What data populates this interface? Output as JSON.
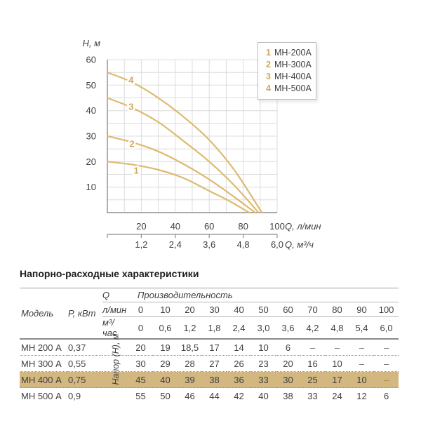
{
  "chart": {
    "y_axis_label": "Н, м",
    "x_axis_label_lmin": "Q, л/мин",
    "x_axis_label_m3h": "Q, м³/ч",
    "y_ticks": [
      10,
      20,
      30,
      40,
      50,
      60
    ],
    "x_ticks_lmin": [
      20,
      40,
      60,
      80,
      100
    ],
    "x_ticks_m3h": [
      "1,2",
      "2,4",
      "3,6",
      "4,8",
      "6,0"
    ]
  },
  "chart_data": {
    "type": "line",
    "title": "",
    "xlabel": "Q, л/мин",
    "x2label": "Q, м³/ч",
    "ylabel": "Н, м",
    "xlim": [
      0,
      100
    ],
    "ylim": [
      0,
      60
    ],
    "grid": true,
    "grid_step_x": 10,
    "grid_step_y": 5,
    "legend_position": "top-right",
    "grid_color": "#dcdcdc",
    "axis_color": "#8e8e8e",
    "curve_color": "#ddba6e",
    "number_color": "#d3a855",
    "series": [
      {
        "index": "1",
        "name": "МН-200А",
        "label_at": [
          17,
          16.5
        ],
        "points": [
          [
            0,
            20
          ],
          [
            15,
            18.8
          ],
          [
            30,
            16.8
          ],
          [
            45,
            13.5
          ],
          [
            60,
            8.5
          ],
          [
            72,
            4.5
          ],
          [
            83.5,
            0
          ]
        ]
      },
      {
        "index": "2",
        "name": "МН-300А",
        "label_at": [
          14.5,
          27
        ],
        "points": [
          [
            0,
            30
          ],
          [
            15,
            27.5
          ],
          [
            30,
            24
          ],
          [
            45,
            19
          ],
          [
            60,
            13
          ],
          [
            75,
            6
          ],
          [
            87,
            0
          ]
        ]
      },
      {
        "index": "3",
        "name": "МН-400А",
        "label_at": [
          14,
          41.5
        ],
        "points": [
          [
            0,
            45
          ],
          [
            15,
            41
          ],
          [
            30,
            35.5
          ],
          [
            45,
            28
          ],
          [
            60,
            20
          ],
          [
            75,
            10.5
          ],
          [
            89,
            0
          ]
        ]
      },
      {
        "index": "4",
        "name": "МН-500А",
        "label_at": [
          14,
          52
        ],
        "points": [
          [
            0,
            55
          ],
          [
            15,
            51
          ],
          [
            30,
            45
          ],
          [
            45,
            37.5
          ],
          [
            60,
            28.5
          ],
          [
            75,
            16.5
          ],
          [
            91,
            0
          ]
        ]
      }
    ]
  },
  "table": {
    "title": "Напорно-расходные характеристики",
    "col_model": "Модель",
    "col_power": "Р, кВт",
    "col_q": "Q",
    "col_productivity": "Производительность",
    "unit_lmin": "л/мин",
    "unit_m3h": "м³/час",
    "head_label": "Напор (Н), м",
    "flow_lmin": [
      "0",
      "10",
      "20",
      "30",
      "40",
      "50",
      "60",
      "70",
      "80",
      "90",
      "100"
    ],
    "flow_m3h": [
      "0",
      "0,6",
      "1,2",
      "1,8",
      "2,4",
      "3,0",
      "3,6",
      "4,2",
      "4,8",
      "5,4",
      "6,0"
    ],
    "highlight_color": "#d3b781",
    "rows": [
      {
        "model": "МН 200 А",
        "power": "0,37",
        "highlight": false,
        "values": [
          "20",
          "19",
          "18,5",
          "17",
          "14",
          "10",
          "6",
          "–",
          "–",
          "–",
          "–"
        ]
      },
      {
        "model": "МН 300 А",
        "power": "0,55",
        "highlight": false,
        "values": [
          "30",
          "29",
          "28",
          "27",
          "26",
          "23",
          "20",
          "16",
          "10",
          "–",
          "–"
        ]
      },
      {
        "model": "МН 400 А",
        "power": "0,75",
        "highlight": true,
        "values": [
          "45",
          "40",
          "39",
          "38",
          "36",
          "33",
          "30",
          "25",
          "17",
          "10",
          "–"
        ]
      },
      {
        "model": "МН 500 А",
        "power": "0,9",
        "highlight": false,
        "values": [
          "55",
          "50",
          "46",
          "44",
          "42",
          "40",
          "38",
          "33",
          "24",
          "12",
          "6"
        ]
      }
    ]
  }
}
